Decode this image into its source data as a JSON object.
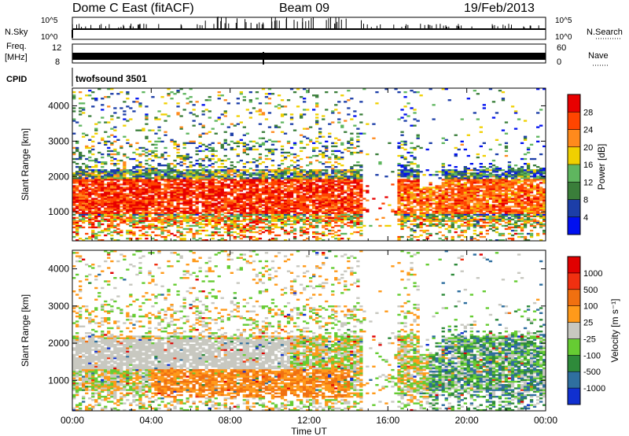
{
  "header": {
    "title": "Dome C East (fitACF)",
    "beam": "Beam 09",
    "date": "19/Feb/2013"
  },
  "strips": {
    "nsky_label": "N.Sky",
    "nsearch_label": "N.Search",
    "freq_label_1": "Freq.",
    "freq_label_2": "[MHz]",
    "nave_label": "Nave",
    "cpid_label": "CPID",
    "cpid_value": "twofsound 3501",
    "noise_ticks_left": [
      "10^5",
      "10^0"
    ],
    "noise_ticks_right": [
      "10^5",
      "10^0"
    ],
    "freq_ticks_left": [
      "12",
      "8"
    ],
    "freq_ticks_right": [
      "60",
      "0"
    ]
  },
  "chart_data": [
    {
      "type": "heatmap",
      "name": "power",
      "ylabel": "Slant Range [km]",
      "ylim": [
        180,
        4500
      ],
      "yticks": [
        1000,
        2000,
        3000,
        4000
      ],
      "xlim": [
        0,
        24
      ],
      "colorbar_label": "Power [dB]",
      "colorbar_ticks": [
        4,
        8,
        12,
        16,
        20,
        24,
        28
      ],
      "colors": [
        "#0010f0",
        "#1c3ea8",
        "#3a7e3a",
        "#5fb65f",
        "#f0d000",
        "#ff8a1c",
        "#ff4500",
        "#e80000"
      ]
    },
    {
      "type": "heatmap",
      "name": "velocity",
      "ylabel": "Slant Range [km]",
      "ylim": [
        180,
        4500
      ],
      "yticks": [
        1000,
        2000,
        3000,
        4000
      ],
      "xlim": [
        0,
        24
      ],
      "colorbar_label": "Velocity [m s⁻¹]",
      "colorbar_ticks": [
        1000,
        500,
        100,
        25,
        -25,
        -100,
        -500,
        -1000
      ],
      "colors": [
        "#1030d0",
        "#2f6f9f",
        "#2e8a3a",
        "#66cc33",
        "#c8c8c0",
        "#ff9a1a",
        "#f07010",
        "#f03010",
        "#e00000"
      ]
    }
  ],
  "time_axis": {
    "xlabel": "Time UT",
    "ticks": [
      "00:00",
      "04:00",
      "08:00",
      "12:00",
      "16:00",
      "20:00",
      "00:00"
    ]
  }
}
